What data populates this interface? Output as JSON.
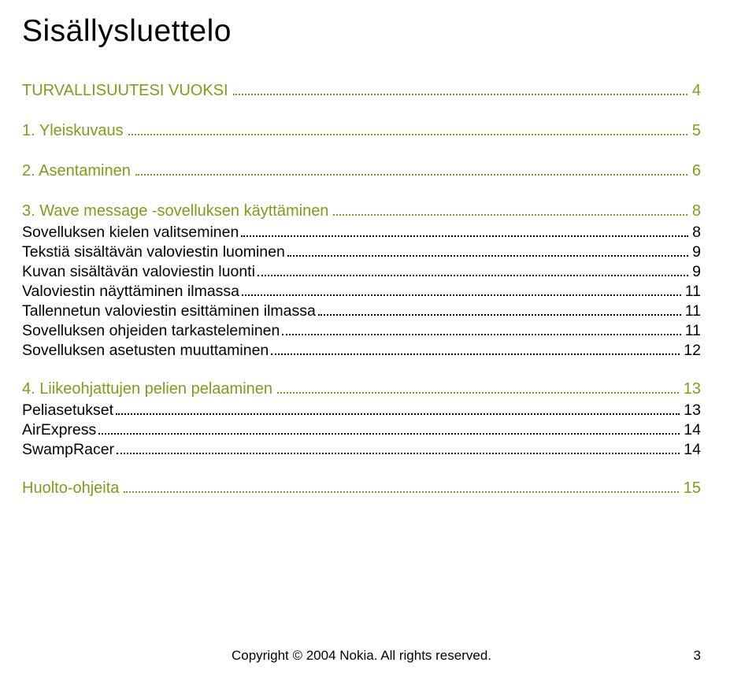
{
  "title": "Sisällysluettelo",
  "colors": {
    "section_title": "#7b9e1a",
    "body_text": "#000000",
    "background": "#ffffff"
  },
  "typography": {
    "main_title_fontsize": 39,
    "section_fontsize": 20,
    "sub_fontsize": 19.5,
    "footer_fontsize": 17
  },
  "toc": [
    {
      "type": "section",
      "label": "TURVALLISUUTESI VUOKSI",
      "page": "4"
    },
    {
      "type": "section",
      "label": "1. Yleiskuvaus",
      "page": "5"
    },
    {
      "type": "section",
      "label": "2. Asentaminen",
      "page": "6"
    },
    {
      "type": "section",
      "label": "3. Wave message -sovelluksen käyttäminen",
      "page": "8"
    },
    {
      "type": "sub",
      "label": "Sovelluksen kielen valitseminen",
      "page": "8"
    },
    {
      "type": "sub",
      "label": "Tekstiä sisältävän valoviestin luominen",
      "page": "9"
    },
    {
      "type": "sub",
      "label": "Kuvan sisältävän valoviestin luonti",
      "page": "9"
    },
    {
      "type": "sub",
      "label": "Valoviestin näyttäminen ilmassa",
      "page": "11"
    },
    {
      "type": "sub",
      "label": "Tallennetun valoviestin esittäminen ilmassa",
      "page": "11"
    },
    {
      "type": "sub",
      "label": "Sovelluksen ohjeiden tarkasteleminen",
      "page": "11"
    },
    {
      "type": "sub",
      "label": "Sovelluksen asetusten muuttaminen",
      "page": "12"
    },
    {
      "type": "section",
      "label": "4. Liikeohjattujen pelien pelaaminen",
      "page": "13"
    },
    {
      "type": "sub",
      "label": "Peliasetukset",
      "page": "13"
    },
    {
      "type": "sub",
      "label": "AirExpress",
      "page": "14"
    },
    {
      "type": "sub",
      "label": "SwampRacer",
      "page": "14"
    },
    {
      "type": "section",
      "label": "Huolto-ohjeita",
      "page": "15"
    }
  ],
  "footer": {
    "text": "Copyright © 2004 Nokia. All rights reserved.",
    "page_number": "3"
  }
}
